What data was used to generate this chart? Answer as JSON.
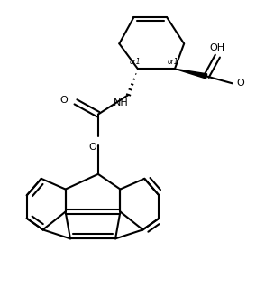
{
  "bg_color": "#ffffff",
  "line_color": "#000000",
  "lw": 1.5,
  "fs": 8.0,
  "fs_small": 5.5,
  "figsize": [
    2.94,
    3.4
  ],
  "dpi": 100,
  "xlim": [
    -0.5,
    9.5
  ],
  "ylim": [
    -0.3,
    11.3
  ]
}
